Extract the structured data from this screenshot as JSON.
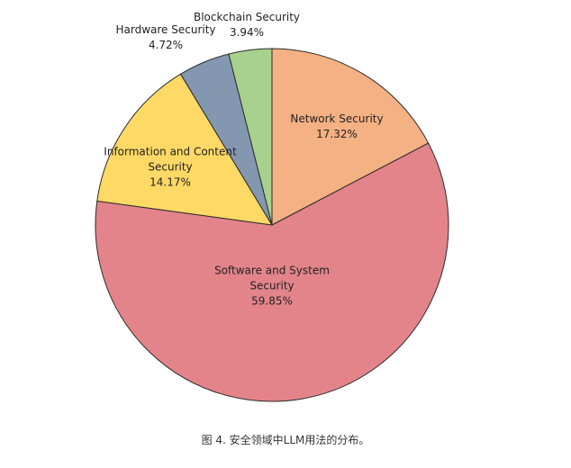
{
  "chart_data": {
    "type": "pie",
    "title": "",
    "slices": [
      {
        "lines": [
          "Network Security"
        ],
        "pct_label": "17.32%",
        "value": 17.32,
        "color": "#F4B183"
      },
      {
        "lines": [
          "Software and System",
          "Security"
        ],
        "pct_label": "59.85%",
        "value": 59.85,
        "color": "#E3848A"
      },
      {
        "lines": [
          "Information and Content",
          "Security"
        ],
        "pct_label": "14.17%",
        "value": 14.17,
        "color": "#FFD966"
      },
      {
        "lines": [
          "Hardware Security"
        ],
        "pct_label": "4.72%",
        "value": 4.72,
        "color": "#8497B0"
      },
      {
        "lines": [
          "Blockchain Security"
        ],
        "pct_label": "3.94%",
        "value": 3.94,
        "color": "#A9D18E"
      }
    ],
    "start_at": "12 o'clock",
    "direction": "clockwise",
    "legend": "none"
  },
  "caption": "图 4. 安全领域中LLM用法的分布。"
}
